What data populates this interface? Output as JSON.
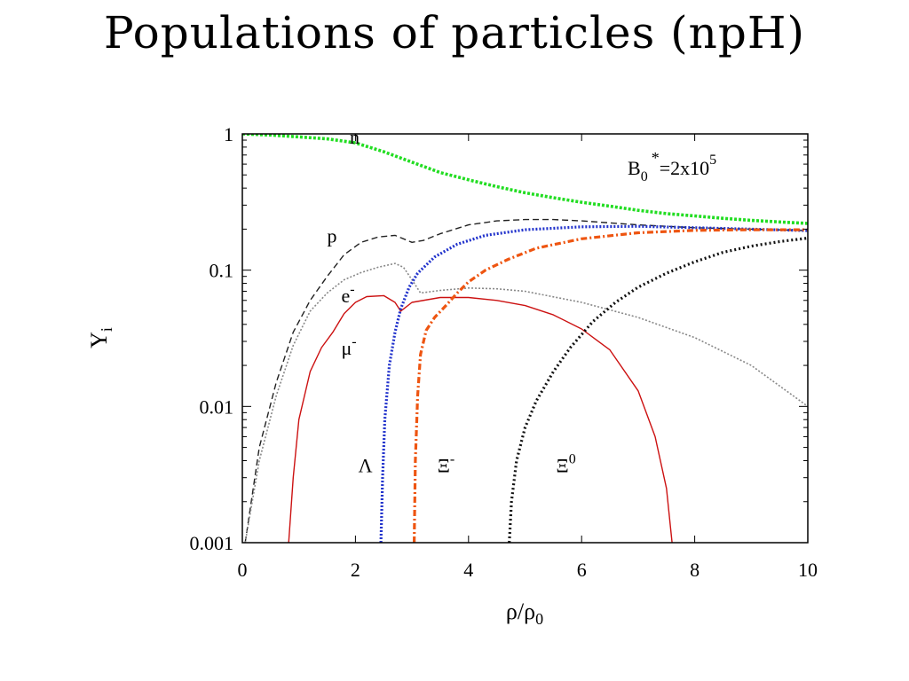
{
  "slide": {
    "title": "Populations of particles (npH)"
  },
  "chart_data": {
    "type": "line",
    "xlabel": "ρ/ρ",
    "xlabel_sub": "0",
    "ylabel": "Y",
    "ylabel_sub": "i",
    "xlim": [
      0,
      10
    ],
    "ylim": [
      0.001,
      1
    ],
    "yscale": "log",
    "grid": false,
    "x_ticks": [
      0,
      2,
      4,
      6,
      8,
      10
    ],
    "x_tick_labels": [
      "0",
      "2",
      "4",
      "6",
      "8",
      "10"
    ],
    "y_ticks": [
      0.001,
      0.01,
      0.1,
      1
    ],
    "y_tick_labels": [
      "0.001",
      "0.01",
      "0.1",
      "1"
    ],
    "annotation": {
      "base": "B",
      "sub": "0",
      "sup": "*",
      "rest": "=2x10",
      "exp": "5"
    },
    "series": [
      {
        "name": "n",
        "label_parts": [
          "n",
          ""
        ],
        "label_at": [
          1.9,
          0.85
        ],
        "color": "#22dd22",
        "dash": "3,2",
        "width": 3.6,
        "x": [
          0,
          0.5,
          1,
          1.5,
          2,
          2.5,
          3,
          3.5,
          4,
          4.5,
          5,
          5.5,
          6,
          6.5,
          7,
          7.5,
          8,
          8.5,
          9,
          9.5,
          10
        ],
        "y": [
          1.0,
          0.98,
          0.95,
          0.92,
          0.86,
          0.74,
          0.62,
          0.52,
          0.46,
          0.41,
          0.37,
          0.34,
          0.315,
          0.295,
          0.275,
          0.26,
          0.25,
          0.24,
          0.232,
          0.226,
          0.22
        ]
      },
      {
        "name": "p",
        "label_parts": [
          "p",
          ""
        ],
        "label_at": [
          1.5,
          0.16
        ],
        "color": "#222222",
        "dash": "7,4",
        "width": 1.4,
        "x": [
          0.05,
          0.3,
          0.6,
          0.9,
          1.2,
          1.5,
          1.8,
          2.1,
          2.4,
          2.7,
          3.0,
          3.2,
          3.5,
          4.0,
          4.5,
          5.0,
          5.5,
          6.0,
          7.0,
          8.0,
          9.0,
          10.0
        ],
        "y": [
          0.001,
          0.005,
          0.015,
          0.035,
          0.06,
          0.09,
          0.13,
          0.16,
          0.175,
          0.18,
          0.16,
          0.165,
          0.185,
          0.215,
          0.23,
          0.235,
          0.235,
          0.23,
          0.215,
          0.205,
          0.2,
          0.195
        ]
      },
      {
        "name": "e-",
        "label_parts": [
          "e",
          "-"
        ],
        "label_at": [
          1.75,
          0.058
        ],
        "color": "#888888",
        "dash": "2,2",
        "width": 1.6,
        "x": [
          0.05,
          0.3,
          0.6,
          0.9,
          1.2,
          1.5,
          1.8,
          2.1,
          2.4,
          2.7,
          2.85,
          3.0,
          3.15,
          3.5,
          4.0,
          4.5,
          5.0,
          6.0,
          7.0,
          8.0,
          9.0,
          10.0
        ],
        "y": [
          0.001,
          0.004,
          0.012,
          0.028,
          0.05,
          0.068,
          0.085,
          0.096,
          0.105,
          0.112,
          0.105,
          0.085,
          0.068,
          0.071,
          0.074,
          0.073,
          0.07,
          0.058,
          0.045,
          0.032,
          0.02,
          0.01
        ]
      },
      {
        "name": "mu-",
        "label_parts": [
          "μ",
          "-"
        ],
        "label_at": [
          1.75,
          0.024
        ],
        "color": "#cc1111",
        "dash": "",
        "width": 1.4,
        "x": [
          0.82,
          0.9,
          1.0,
          1.2,
          1.4,
          1.6,
          1.8,
          2.0,
          2.2,
          2.5,
          2.7,
          2.8,
          3.0,
          3.5,
          4.0,
          4.5,
          5.0,
          5.5,
          6.0,
          6.5,
          7.0,
          7.3,
          7.5,
          7.6
        ],
        "y": [
          0.001,
          0.003,
          0.008,
          0.018,
          0.027,
          0.035,
          0.048,
          0.058,
          0.064,
          0.065,
          0.058,
          0.05,
          0.058,
          0.063,
          0.063,
          0.06,
          0.055,
          0.047,
          0.037,
          0.026,
          0.013,
          0.006,
          0.0025,
          0.001
        ]
      },
      {
        "name": "Lambda",
        "label_parts": [
          "Λ",
          ""
        ],
        "label_at": [
          2.05,
          0.0033
        ],
        "color": "#2233cc",
        "dash": "2,2",
        "width": 3.2,
        "x": [
          2.45,
          2.48,
          2.52,
          2.6,
          2.7,
          2.8,
          2.95,
          3.1,
          3.4,
          3.8,
          4.3,
          5.0,
          6.0,
          7.0,
          8.0,
          9.0,
          10.0
        ],
        "y": [
          0.001,
          0.003,
          0.008,
          0.02,
          0.035,
          0.052,
          0.075,
          0.095,
          0.125,
          0.155,
          0.18,
          0.198,
          0.208,
          0.21,
          0.205,
          0.2,
          0.195
        ]
      },
      {
        "name": "Xi-",
        "label_parts": [
          "Ξ",
          "-"
        ],
        "label_at": [
          3.45,
          0.0033
        ],
        "color": "#ee5511",
        "dash": "7,3,2,3",
        "width": 3.2,
        "x": [
          3.04,
          3.06,
          3.1,
          3.15,
          3.25,
          3.4,
          3.6,
          3.8,
          4.0,
          4.3,
          4.7,
          5.2,
          6.0,
          7.0,
          8.0,
          9.0,
          10.0
        ],
        "y": [
          0.001,
          0.004,
          0.012,
          0.024,
          0.036,
          0.045,
          0.055,
          0.068,
          0.082,
          0.1,
          0.12,
          0.145,
          0.17,
          0.188,
          0.196,
          0.198,
          0.198
        ]
      },
      {
        "name": "Xi0",
        "label_parts": [
          "Ξ",
          "0"
        ],
        "label_at": [
          5.55,
          0.0033
        ],
        "color": "#111111",
        "dash": "2,3",
        "width": 3.2,
        "x": [
          4.72,
          4.76,
          4.85,
          5.0,
          5.2,
          5.5,
          5.8,
          6.2,
          6.6,
          7.0,
          7.5,
          8.0,
          8.5,
          9.0,
          9.5,
          10.0
        ],
        "y": [
          0.001,
          0.002,
          0.004,
          0.007,
          0.011,
          0.018,
          0.027,
          0.042,
          0.058,
          0.075,
          0.095,
          0.115,
          0.135,
          0.15,
          0.162,
          0.172
        ]
      }
    ]
  }
}
